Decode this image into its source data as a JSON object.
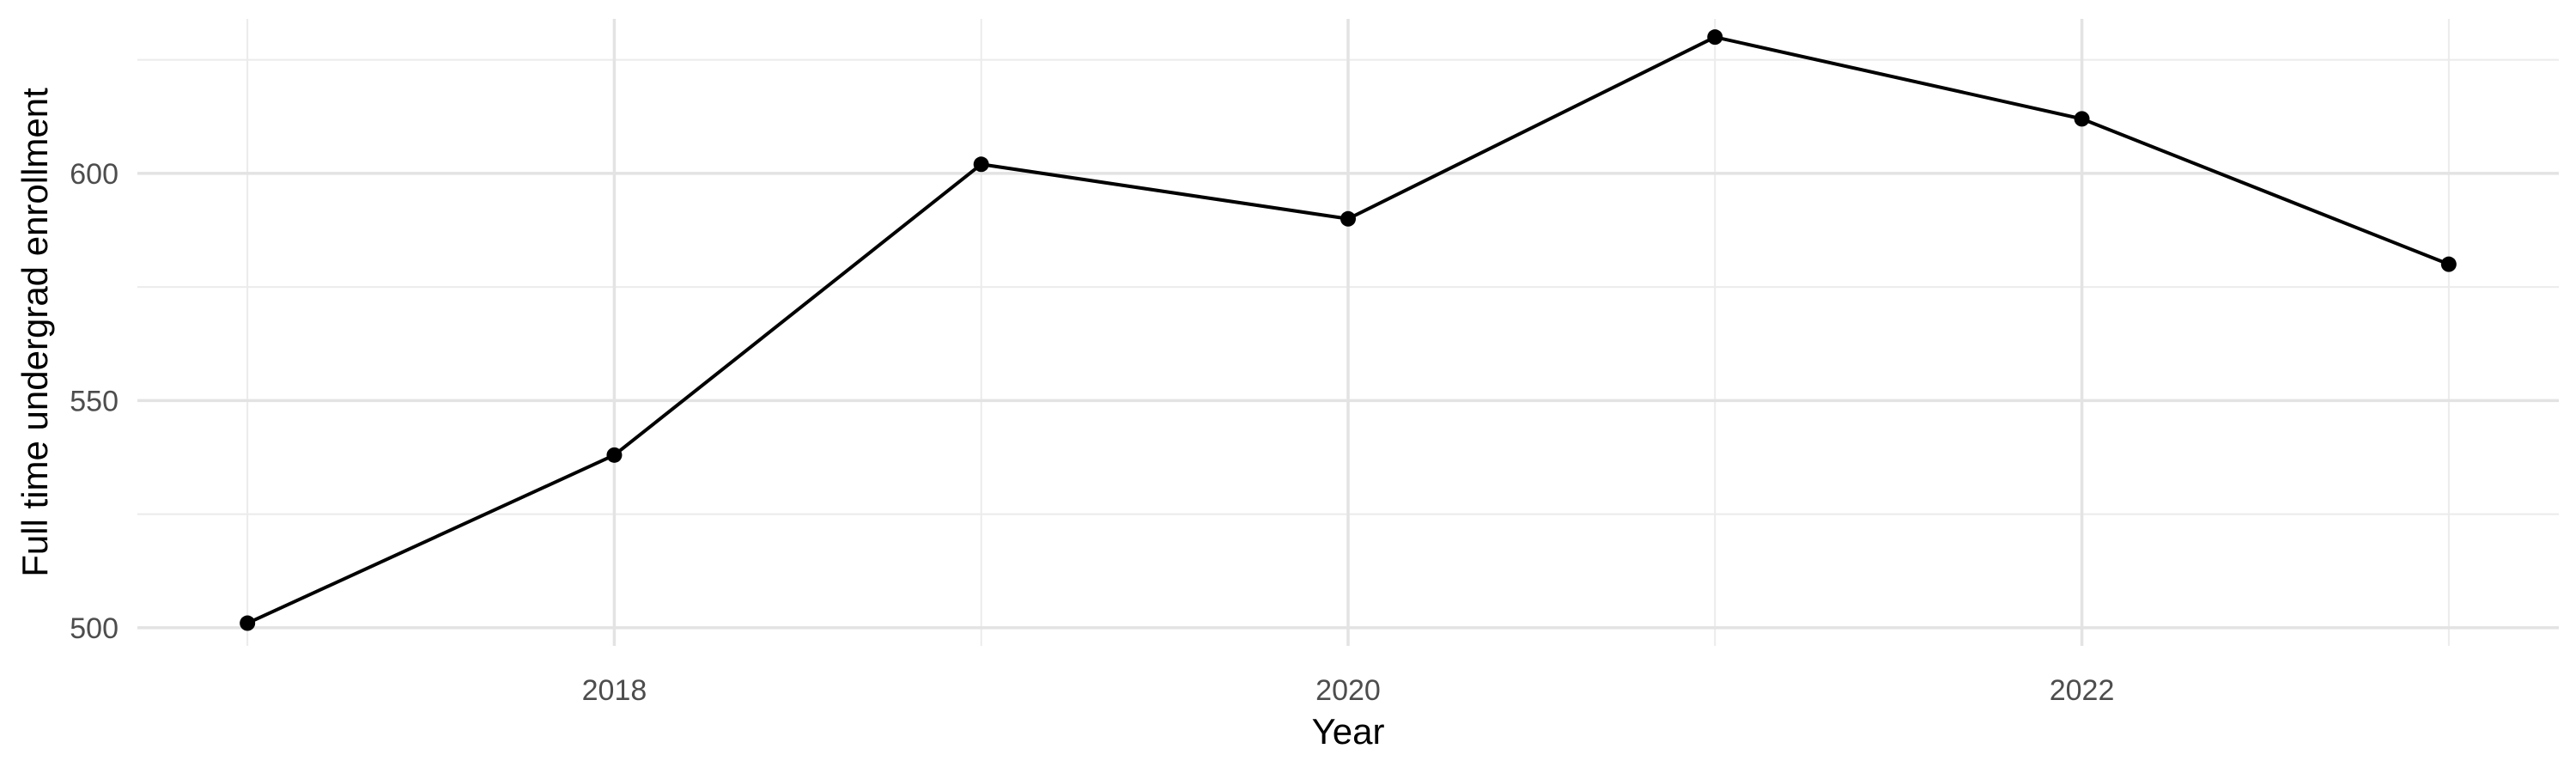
{
  "chart_data": {
    "type": "line",
    "title": "",
    "xlabel": "Year",
    "ylabel": "Full time undergrad enrollment",
    "xlim": [
      2016.7,
      2023.3
    ],
    "ylim": [
      496,
      634
    ],
    "x_ticks": [
      2018,
      2020,
      2022
    ],
    "x_tick_labels": [
      "2018",
      "2020",
      "2022"
    ],
    "x_minor_gridlines": [
      2017,
      2019,
      2021,
      2023
    ],
    "y_ticks": [
      500,
      550,
      600
    ],
    "y_tick_labels": [
      "500",
      "550",
      "600"
    ],
    "y_minor_gridlines": [
      525,
      575,
      625
    ],
    "grid": true,
    "legend": "none",
    "series": [
      {
        "x": [
          2017,
          2018,
          2019,
          2020,
          2021,
          2022,
          2023
        ],
        "values": [
          501,
          538,
          602,
          590,
          630,
          612,
          580
        ],
        "color": "#000000"
      }
    ]
  }
}
